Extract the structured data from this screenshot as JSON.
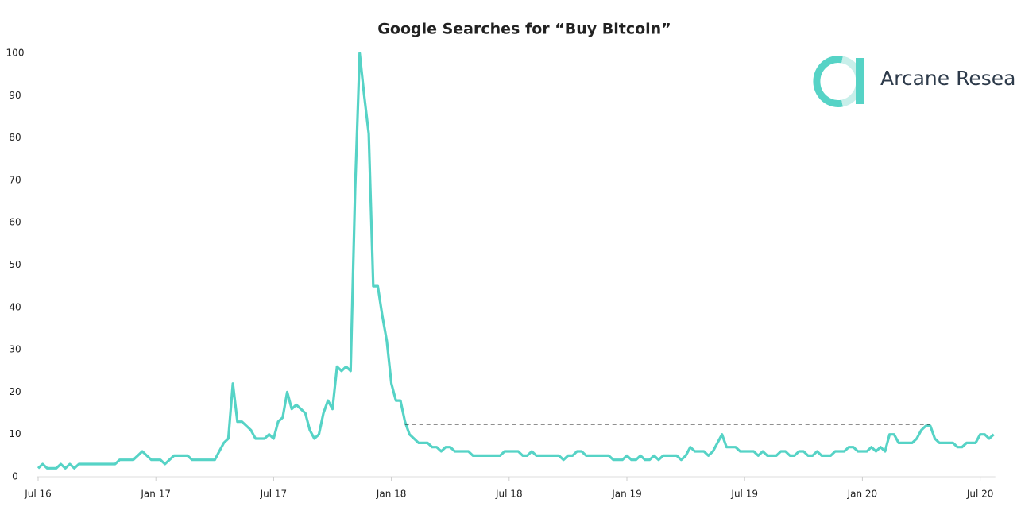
{
  "chart_data": {
    "type": "line",
    "title": "Google Searches for “Buy Bitcoin”",
    "brand": "Arcane Research",
    "categories": [
      "Jul 16",
      null,
      null,
      null,
      null,
      null,
      null,
      null,
      null,
      null,
      null,
      null,
      null,
      null,
      null,
      null,
      null,
      null,
      null,
      null,
      null,
      null,
      null,
      null,
      null,
      null,
      "Jan 17",
      null,
      null,
      null,
      null,
      null,
      null,
      null,
      null,
      null,
      null,
      null,
      null,
      null,
      null,
      null,
      null,
      null,
      null,
      null,
      null,
      null,
      null,
      null,
      null,
      null,
      "Jul 17",
      null,
      null,
      null,
      null,
      null,
      null,
      null,
      null,
      null,
      null,
      null,
      null,
      null,
      null,
      null,
      null,
      null,
      null,
      null,
      null,
      null,
      null,
      null,
      null,
      null,
      "Jan 18",
      null,
      null,
      null,
      null,
      null,
      null,
      null,
      null,
      null,
      null,
      null,
      null,
      null,
      null,
      null,
      null,
      null,
      null,
      null,
      null,
      null,
      null,
      null,
      null,
      null,
      "Jul 18",
      null,
      null,
      null,
      null,
      null,
      null,
      null,
      null,
      null,
      null,
      null,
      null,
      null,
      null,
      null,
      null,
      null,
      null,
      null,
      null,
      null,
      null,
      null,
      null,
      null,
      "Jan 19",
      null,
      null,
      null,
      null,
      null,
      null,
      null,
      null,
      null,
      null,
      null,
      null,
      null,
      null,
      null,
      null,
      null,
      null,
      null,
      null,
      null,
      null,
      null,
      null,
      null,
      "Jul 19",
      null,
      null,
      null,
      null,
      null,
      null,
      null,
      null,
      null,
      null,
      null,
      null,
      null,
      null,
      null,
      null,
      null,
      null,
      null,
      null,
      null,
      null,
      null,
      null,
      null,
      "Jan 20",
      null,
      null,
      null,
      null,
      null,
      null,
      null,
      null,
      null,
      null,
      null,
      null,
      null,
      null,
      null,
      null,
      null,
      null,
      null,
      null,
      null,
      null,
      null,
      null,
      null,
      "Jul 20",
      null,
      null,
      null
    ],
    "series": [
      {
        "name": "Buy Bitcoin",
        "color": "#56d3c6",
        "values": [
          2,
          3,
          2,
          2,
          2,
          3,
          2,
          3,
          2,
          3,
          3,
          3,
          3,
          3,
          3,
          3,
          3,
          3,
          4,
          4,
          4,
          4,
          5,
          6,
          5,
          4,
          4,
          4,
          3,
          4,
          5,
          5,
          5,
          5,
          4,
          4,
          4,
          4,
          4,
          4,
          6,
          8,
          9,
          22,
          13,
          13,
          12,
          11,
          9,
          9,
          9,
          10,
          9,
          13,
          14,
          20,
          16,
          17,
          16,
          15,
          11,
          9,
          10,
          15,
          18,
          16,
          26,
          25,
          26,
          25,
          68,
          100,
          90,
          81,
          45,
          45,
          38,
          32,
          22,
          18,
          18,
          13,
          10,
          9,
          8,
          8,
          8,
          7,
          7,
          6,
          7,
          7,
          6,
          6,
          6,
          6,
          5,
          5,
          5,
          5,
          5,
          5,
          5,
          6,
          6,
          6,
          6,
          5,
          5,
          6,
          5,
          5,
          5,
          5,
          5,
          5,
          4,
          5,
          5,
          6,
          6,
          5,
          5,
          5,
          5,
          5,
          5,
          4,
          4,
          4,
          5,
          4,
          4,
          5,
          4,
          4,
          5,
          4,
          5,
          5,
          5,
          5,
          4,
          5,
          7,
          6,
          6,
          6,
          5,
          6,
          8,
          10,
          7,
          7,
          7,
          6,
          6,
          6,
          6,
          5,
          6,
          5,
          5,
          5,
          6,
          6,
          5,
          5,
          6,
          6,
          5,
          5,
          6,
          5,
          5,
          5,
          6,
          6,
          6,
          7,
          7,
          6,
          6,
          6,
          7,
          6,
          7,
          6,
          10,
          10,
          8,
          8,
          8,
          8,
          9,
          11,
          12,
          12,
          9,
          8,
          8,
          8,
          8,
          7,
          7,
          8,
          8,
          8,
          10,
          10,
          9,
          10
        ]
      }
    ],
    "reference_line": {
      "value": 12.4,
      "start": 81,
      "end": 197
    },
    "ylim": [
      0,
      100
    ],
    "yticks": [
      0,
      10,
      20,
      30,
      40,
      50,
      60,
      70,
      80,
      90,
      100
    ],
    "grid": false
  }
}
